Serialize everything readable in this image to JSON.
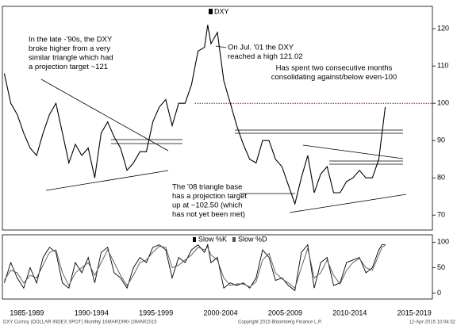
{
  "chart_data": [
    {
      "type": "line",
      "legend": "DXY",
      "x": [
        1985.75,
        1986.25,
        1986.75,
        1987.25,
        1987.75,
        1988.25,
        1988.75,
        1989.25,
        1989.75,
        1990.25,
        1990.75,
        1991.25,
        1991.75,
        1992.25,
        1992.75,
        1993.25,
        1993.75,
        1994.25,
        1994.75,
        1995.25,
        1995.75,
        1996.25,
        1996.75,
        1997.25,
        1997.75,
        1998.25,
        1998.75,
        1999.25,
        1999.75,
        2000.25,
        2000.75,
        2001.25,
        2001.5,
        2001.75,
        2002.25,
        2002.75,
        2003.25,
        2003.75,
        2004.25,
        2004.75,
        2005.25,
        2005.75,
        2006.25,
        2006.75,
        2007.25,
        2007.75,
        2008.25,
        2008.75,
        2009.25,
        2009.75,
        2010.25,
        2010.75,
        2011.25,
        2011.75,
        2012.25,
        2012.75,
        2013.25,
        2013.75,
        2014.25,
        2014.75,
        2015.0,
        2015.25
      ],
      "series": [
        {
          "name": "DXY",
          "color": "#000000",
          "values": [
            108,
            100,
            97,
            92,
            88,
            86,
            92,
            97,
            100,
            92,
            84,
            89,
            86,
            88,
            80,
            92,
            95,
            91,
            88,
            82,
            84,
            87,
            87,
            95,
            99,
            101,
            94,
            100,
            100,
            105,
            114,
            115,
            121.02,
            116,
            119,
            106,
            100,
            94,
            89,
            85,
            84,
            90,
            90,
            85,
            83,
            78,
            73,
            80,
            86,
            76,
            81,
            83,
            76,
            76,
            79,
            80,
            82,
            80,
            80,
            85,
            92,
            99
          ]
        }
      ],
      "reference_line": 100,
      "reference_color": "#c00000",
      "xlim": [
        1985.6,
        2018.9
      ],
      "xticks": [
        {
          "value": 1987.5,
          "label": "1985-1989"
        },
        {
          "value": 1992.5,
          "label": "1990-1994"
        },
        {
          "value": 1997.5,
          "label": "1995-1999"
        },
        {
          "value": 2002.5,
          "label": "2000-2004"
        },
        {
          "value": 2007.5,
          "label": "2005-2009"
        },
        {
          "value": 2012.5,
          "label": "2010-2014"
        },
        {
          "value": 2017.5,
          "label": "2015-2019"
        }
      ],
      "ylim": [
        66,
        126
      ],
      "yticks": [
        70,
        80,
        90,
        100,
        110,
        120
      ],
      "annotations": [
        {
          "lines": [
            "In the late -'90s, the DXY",
            "broke higher from a very",
            "similar triangle which had",
            "a projection target ~121"
          ],
          "color": "#000000"
        },
        {
          "lines": [
            "On Jul. '01 the DXY",
            "reached a high 121.02"
          ],
          "color": "#000000"
        },
        {
          "lines": [
            "Has spent two consecutive months",
            "consolidating against/below even-100"
          ],
          "color": "#e01010"
        },
        {
          "lines": [
            "The '08 triangle base",
            "has a projection target",
            "up at ~102.50 (which",
            "has not yet been met)"
          ],
          "color": "#000000"
        }
      ]
    },
    {
      "type": "line",
      "x": [
        1985.75,
        1986.25,
        1986.75,
        1987.25,
        1987.75,
        1988.25,
        1988.75,
        1989.25,
        1989.75,
        1990.25,
        1990.75,
        1991.25,
        1991.75,
        1992.25,
        1992.75,
        1993.25,
        1993.75,
        1994.25,
        1994.75,
        1995.25,
        1995.75,
        1996.25,
        1996.75,
        1997.25,
        1997.75,
        1998.25,
        1998.75,
        1999.25,
        1999.75,
        2000.25,
        2000.75,
        2001.25,
        2001.5,
        2001.75,
        2002.25,
        2002.75,
        2003.25,
        2003.75,
        2004.25,
        2004.75,
        2005.25,
        2005.75,
        2006.25,
        2006.75,
        2007.25,
        2007.75,
        2008.25,
        2008.75,
        2009.25,
        2009.75,
        2010.25,
        2010.75,
        2011.25,
        2011.75,
        2012.25,
        2012.75,
        2013.25,
        2013.75,
        2014.25,
        2014.75,
        2015.0,
        2015.25
      ],
      "series": [
        {
          "name": "Slow %K",
          "color": "#000000",
          "values": [
            20,
            60,
            30,
            10,
            50,
            20,
            70,
            90,
            80,
            20,
            10,
            60,
            40,
            70,
            20,
            80,
            90,
            40,
            30,
            10,
            50,
            70,
            60,
            90,
            95,
            85,
            30,
            70,
            60,
            85,
            95,
            80,
            95,
            60,
            70,
            10,
            20,
            15,
            20,
            10,
            30,
            85,
            70,
            25,
            30,
            15,
            5,
            80,
            95,
            10,
            60,
            70,
            15,
            20,
            60,
            65,
            70,
            40,
            50,
            85,
            95,
            95
          ]
        },
        {
          "name": "Slow %D",
          "color": "#555555",
          "values": [
            25,
            45,
            40,
            20,
            35,
            30,
            55,
            80,
            85,
            40,
            15,
            40,
            50,
            60,
            35,
            60,
            85,
            60,
            35,
            15,
            35,
            60,
            65,
            80,
            92,
            90,
            50,
            55,
            65,
            75,
            90,
            85,
            90,
            75,
            65,
            30,
            15,
            18,
            18,
            12,
            22,
            65,
            78,
            40,
            28,
            20,
            10,
            50,
            88,
            30,
            40,
            65,
            35,
            18,
            45,
            60,
            68,
            50,
            45,
            75,
            90,
            94
          ]
        }
      ],
      "xlim": [
        1985.6,
        2018.9
      ],
      "ylim": [
        -10,
        113
      ],
      "yticks": [
        0,
        50,
        100
      ]
    },
    {
      "type": "footer",
      "left": "DXY Curncy (DOLLAR INDEX SPOT) Monthly  16MAR1990-10MAR2015",
      "center": "Copyright 2015 Bloomberg Finance L.P.",
      "right": "12-Apr-2015 10:04:32"
    }
  ]
}
